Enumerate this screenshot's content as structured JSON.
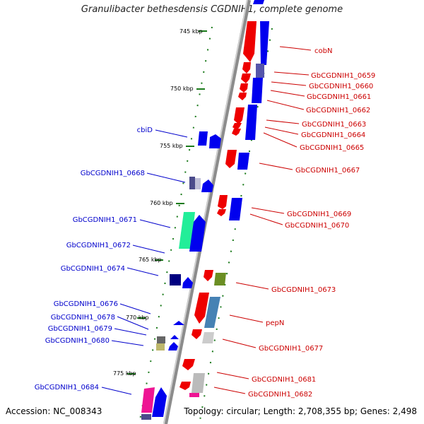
{
  "title": "Granulibacter bethesdensis CGDNIH1, complete genome",
  "accession": "Accession: NC_008343",
  "summary": "Topology: circular; Length: 2,708,355 bp; Genes: 2,498",
  "ticks": [
    "745 kbp",
    "750 kbp",
    "755 kbp",
    "760 kbp",
    "765 kbp",
    "770 kbp",
    "775 kbp"
  ],
  "colors": {
    "backbone": "#8c8c8c",
    "tick": "#1a7a1a",
    "right_label": "#cc0000",
    "left_label": "#0000cc"
  },
  "right_labels": [
    "cobN",
    "GbCGDNIH1_0659",
    "GbCGDNIH1_0660",
    "GbCGDNIH1_0661",
    "GbCGDNIH1_0662",
    "GbCGDNIH1_0663",
    "GbCGDNIH1_0664",
    "GbCGDNIH1_0665",
    "GbCGDNIH1_0667",
    "GbCGDNIH1_0669",
    "GbCGDNIH1_0670",
    "GbCGDNIH1_0673",
    "pepN",
    "GbCGDNIH1_0677",
    "GbCGDNIH1_0681",
    "GbCGDNIH1_0682"
  ],
  "left_labels": [
    "cbiD",
    "GbCGDNIH1_0668",
    "GbCGDNIH1_0671",
    "GbCGDNIH1_0672",
    "GbCGDNIH1_0674",
    "GbCGDNIH1_0676",
    "GbCGDNIH1_0678",
    "GbCGDNIH1_0679",
    "GbCGDNIH1_0680",
    "GbCGDNIH1_0684"
  ]
}
